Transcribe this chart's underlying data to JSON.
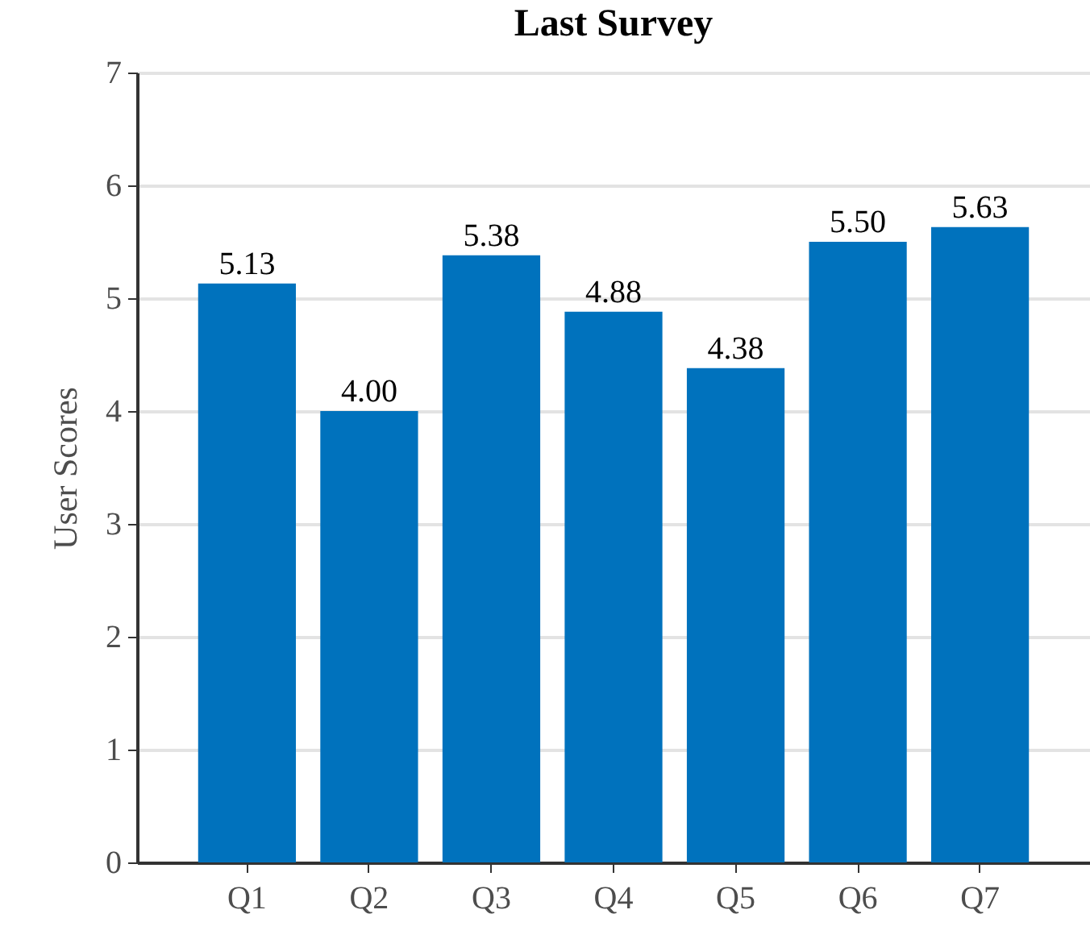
{
  "chart_data": {
    "type": "bar",
    "title": "Last Survey",
    "ylabel": "User Scores",
    "categories": [
      "Q1",
      "Q2",
      "Q3",
      "Q4",
      "Q5",
      "Q6",
      "Q7"
    ],
    "values": [
      5.13,
      4.0,
      5.38,
      4.88,
      4.38,
      5.5,
      5.63
    ],
    "value_labels": [
      "5.13",
      "4.00",
      "5.38",
      "4.88",
      "4.38",
      "5.50",
      "5.63"
    ],
    "color": "#0072bd",
    "ylim": [
      0,
      7
    ],
    "yticks": [
      0,
      1,
      2,
      3,
      4,
      5,
      6,
      7
    ],
    "grid": "y"
  }
}
